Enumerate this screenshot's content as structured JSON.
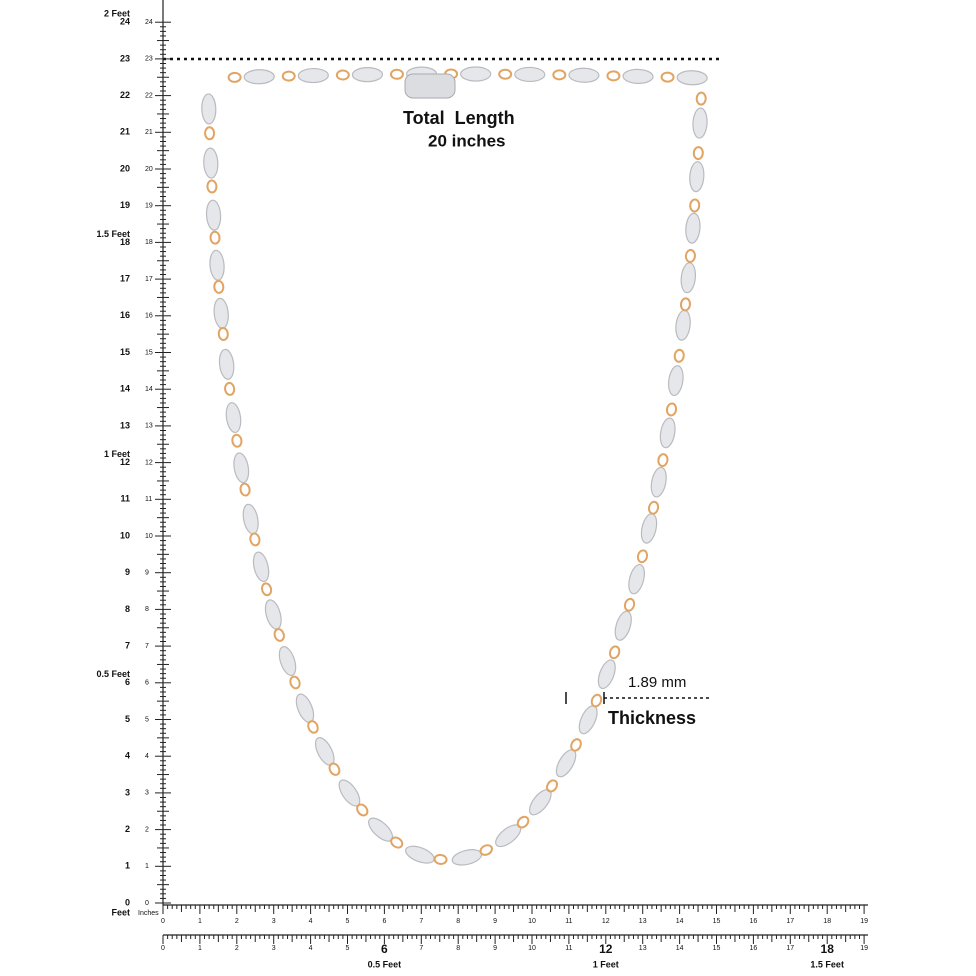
{
  "vertical_ruler": {
    "inches": [
      0,
      1,
      2,
      3,
      4,
      5,
      6,
      7,
      8,
      9,
      10,
      11,
      12,
      13,
      14,
      15,
      16,
      17,
      18,
      19,
      20,
      21,
      22,
      23,
      24
    ],
    "feet": [
      "0.5 Feet",
      "1 Feet",
      "1.5 Feet",
      "2 Feet"
    ],
    "zero_unit": "Feet"
  },
  "inch_ruler": {
    "numbers": [
      0,
      1,
      2,
      3,
      4,
      5,
      6,
      7,
      8,
      9,
      10,
      11,
      12,
      13,
      14,
      15,
      16,
      17,
      18,
      19
    ],
    "unit": "Inches"
  },
  "feet_ruler": {
    "numbers": [
      0,
      1,
      2,
      3,
      4,
      5,
      6,
      7,
      8,
      9,
      10,
      11,
      12,
      13,
      14,
      15,
      16,
      17,
      18,
      19
    ],
    "feet": [
      "0.5 Feet",
      "1 Feet",
      "1.5 Feet"
    ]
  },
  "annotations": {
    "total_length": "Total  Length",
    "length_value": "20 inches",
    "thickness_value": "1.89 mm",
    "thickness_label": "Thickness"
  }
}
